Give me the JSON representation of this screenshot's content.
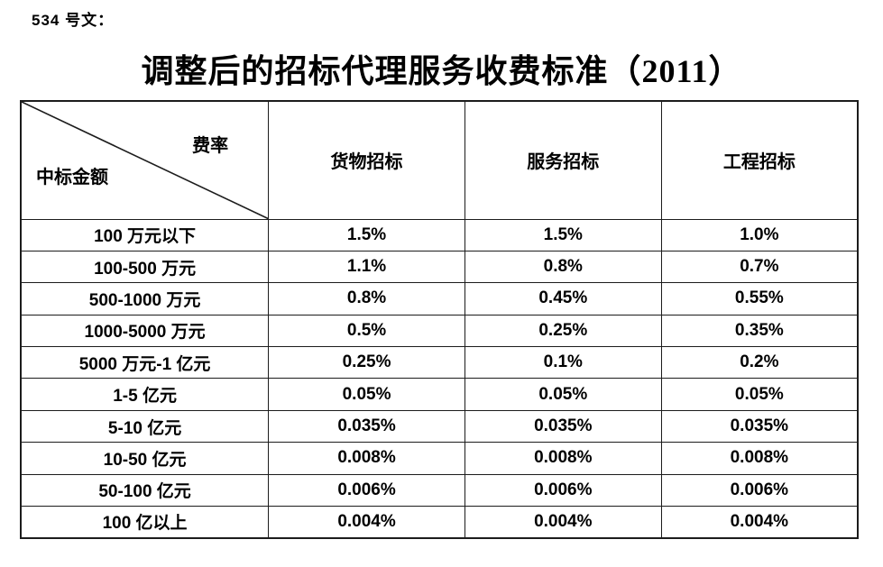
{
  "page": {
    "doc_number": "534 号文：",
    "title": "调整后的招标代理服务收费标准（2011）",
    "background_color": "#ffffff",
    "text_color": "#000000",
    "border_color": "#1c1c1c"
  },
  "table": {
    "corner": {
      "top_label": "费率",
      "bottom_label": "中标金额"
    },
    "columns": [
      "货物招标",
      "服务招标",
      "工程招标"
    ],
    "rows": [
      {
        "label": "100 万元以下",
        "values": [
          "1.5%",
          "1.5%",
          "1.0%"
        ]
      },
      {
        "label": "100-500 万元",
        "values": [
          "1.1%",
          "0.8%",
          "0.7%"
        ]
      },
      {
        "label": "500-1000 万元",
        "values": [
          "0.8%",
          "0.45%",
          "0.55%"
        ]
      },
      {
        "label": "1000-5000 万元",
        "values": [
          "0.5%",
          "0.25%",
          "0.35%"
        ]
      },
      {
        "label": "5000 万元-1 亿元",
        "values": [
          "0.25%",
          "0.1%",
          "0.2%"
        ]
      },
      {
        "label": "1-5 亿元",
        "values": [
          "0.05%",
          "0.05%",
          "0.05%"
        ]
      },
      {
        "label": "5-10 亿元",
        "values": [
          "0.035%",
          "0.035%",
          "0.035%"
        ]
      },
      {
        "label": "10-50 亿元",
        "values": [
          "0.008%",
          "0.008%",
          "0.008%"
        ]
      },
      {
        "label": "50-100 亿元",
        "values": [
          "0.006%",
          "0.006%",
          "0.006%"
        ]
      },
      {
        "label": "100 亿以上",
        "values": [
          "0.004%",
          "0.004%",
          "0.004%"
        ]
      }
    ]
  }
}
